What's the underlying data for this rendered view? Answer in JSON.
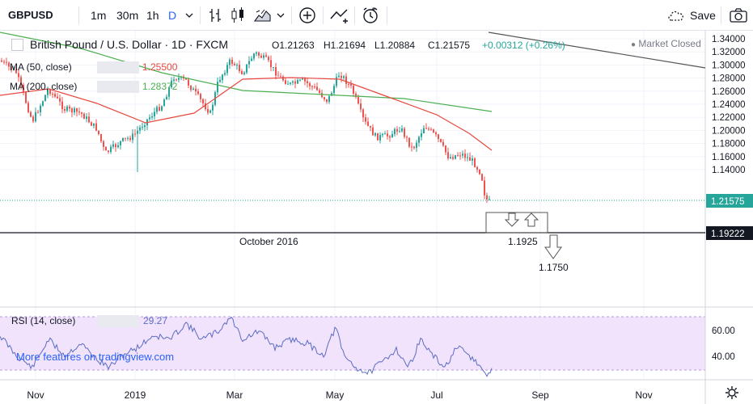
{
  "toolbar": {
    "symbol": "GBPUSD",
    "intervals": [
      "1m",
      "30m",
      "1h",
      "D"
    ],
    "save_label": "Save"
  },
  "chart_header": {
    "title": "British Pound / U.S. Dollar · 1D · FXCM",
    "open": "O1.21263",
    "high": "H1.21694",
    "low": "L1.20884",
    "close": "C1.21575",
    "change": "+0.00312 (+0.26%)",
    "status": "Market Closed"
  },
  "indicators": {
    "ma50_label": "MA (50, close)",
    "ma50_value": "1.25500",
    "ma200_label": "MA (200, close)",
    "ma200_value": "1.28372"
  },
  "rsi": {
    "label": "RSI (14, close)",
    "value": "29.27",
    "promo": "More features on tradingview.com"
  },
  "annotations": {
    "october": "October 2016",
    "level1": "1.1925",
    "level2": "1.1750"
  },
  "price_axis": {
    "ticks": [
      "1.34000",
      "1.32000",
      "1.30000",
      "1.28000",
      "1.26000",
      "1.24000",
      "1.22000",
      "1.20000",
      "1.18000",
      "1.16000",
      "1.14000"
    ],
    "last_price": "1.21575",
    "line_price": "1.19222"
  },
  "rsi_axis": {
    "ticks": [
      "60.00",
      "40.00"
    ]
  },
  "time_axis": {
    "ticks": [
      "Nov",
      "2019",
      "Mar",
      "May",
      "Jul",
      "Sep",
      "Nov"
    ]
  },
  "colors": {
    "up": "#26a69a",
    "down": "#ef5350",
    "ma50": "#e8483f",
    "ma200": "#4caf50",
    "rsi": "#5b6cc4",
    "rsi_band": "#f3e6fb",
    "last_price": "#26a69a"
  }
}
